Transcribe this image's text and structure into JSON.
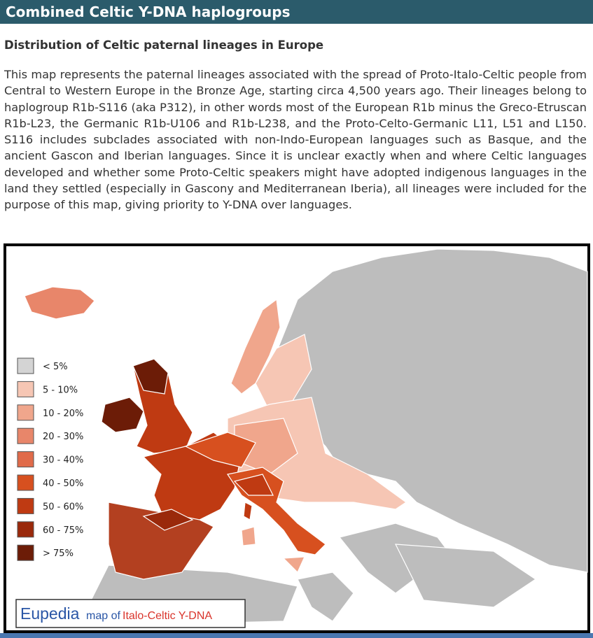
{
  "header": {
    "title": "Combined Celtic Y-DNA haplogroups"
  },
  "subtitle": "Distribution of Celtic paternal lineages in Europe",
  "paragraph": "This map represents the paternal lineages associated with the spread of Proto-Italo-Celtic people from Central to Western Europe in the Bronze Age, starting circa 4,500 years ago. Their lineages belong to haplogroup R1b-S116 (aka P312), in other words most of the European R1b minus the Greco-Etruscan R1b-L23, the Germanic R1b-U106 and R1b-L238, and the Proto-Celto-Germanic L11, L51 and L150. S116 includes subclades associated with non-Indo-European languages such as Basque, and the ancient Gascon and Iberian languages. Since it is unclear exactly when and where Celtic languages developed and whether some Proto-Celtic speakers might have adopted indigenous languages in the land they settled (especially in Gascony and Mediterranean Iberia), all lineages were included for the purpose of this map, giving priority to Y-DNA over languages.",
  "map": {
    "legend": [
      {
        "label": "< 5%",
        "color": "#d4d4d4"
      },
      {
        "label": "5 - 10%",
        "color": "#f6c6b4"
      },
      {
        "label": "10 - 20%",
        "color": "#f0a68c"
      },
      {
        "label": "20 - 30%",
        "color": "#e8866a"
      },
      {
        "label": "30 - 40%",
        "color": "#e06b4a"
      },
      {
        "label": "40 - 50%",
        "color": "#d7501f"
      },
      {
        "label": "50 - 60%",
        "color": "#bf3a12"
      },
      {
        "label": "60 - 75%",
        "color": "#9a290b"
      },
      {
        "label": "> 75%",
        "color": "#6c1c07"
      }
    ],
    "brand": {
      "name": "Eupedia",
      "text": "map of",
      "topic": "Italo-Celtic Y-DNA"
    }
  }
}
